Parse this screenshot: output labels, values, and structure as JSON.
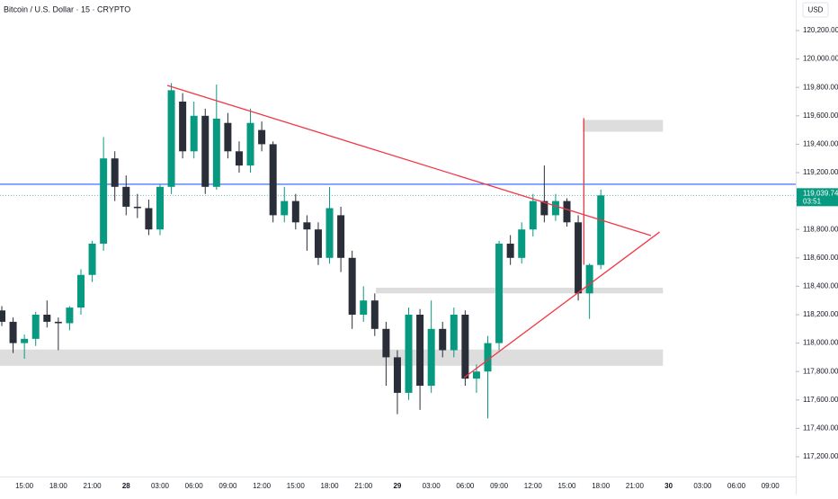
{
  "chart_data": {
    "type": "candlestick",
    "title": "Bitcoin / U.S. Dollar · 15 · CRYPTO",
    "currency_button": "USD",
    "up_color": "#089981",
    "down_color": "#2a2e39",
    "categories": [
      null,
      null,
      "15:00",
      null,
      null,
      "18:00",
      null,
      null,
      "21:00",
      null,
      null,
      "28",
      null,
      null,
      "03:00",
      null,
      null,
      "06:00",
      null,
      null,
      "09:00",
      null,
      null,
      "12:00",
      null,
      null,
      "15:00",
      null,
      null,
      "18:00",
      null,
      null,
      "21:00",
      null,
      null,
      "29",
      null,
      null,
      "03:00",
      null,
      null,
      "06:00",
      null,
      null,
      "09:00",
      null,
      null,
      "12:00",
      null,
      null,
      "15:00",
      null,
      null,
      "18:00",
      null,
      null,
      "21:00",
      null,
      null,
      "30",
      null,
      null,
      "03:00",
      null,
      null,
      "06:00",
      null,
      null,
      "09:00",
      null,
      null
    ],
    "ohlc": [
      [
        118230,
        118260,
        118120,
        118150
      ],
      [
        118150,
        118180,
        117930,
        118000
      ],
      [
        118000,
        118060,
        117890,
        118030
      ],
      [
        118030,
        118220,
        117980,
        118200
      ],
      [
        118200,
        118300,
        118110,
        118150
      ],
      [
        118150,
        118180,
        117950,
        118140
      ],
      [
        118140,
        118260,
        118090,
        118250
      ],
      [
        118250,
        118520,
        118200,
        118480
      ],
      [
        118480,
        118720,
        118430,
        118700
      ],
      [
        118700,
        119450,
        118650,
        119300
      ],
      [
        119300,
        119350,
        119000,
        119100
      ],
      [
        119100,
        119180,
        118900,
        118960
      ],
      [
        118960,
        119050,
        118880,
        118950
      ],
      [
        118950,
        119010,
        118760,
        118800
      ],
      [
        118800,
        119120,
        118760,
        119100
      ],
      [
        119100,
        119830,
        119050,
        119780
      ],
      [
        119700,
        119760,
        119300,
        119350
      ],
      [
        119350,
        119700,
        119300,
        119600
      ],
      [
        119600,
        119650,
        119050,
        119100
      ],
      [
        119100,
        119820,
        119080,
        119580
      ],
      [
        119550,
        119620,
        119300,
        119350
      ],
      [
        119350,
        119420,
        119200,
        119250
      ],
      [
        119250,
        119650,
        119200,
        119550
      ],
      [
        119500,
        119560,
        119350,
        119400
      ],
      [
        119400,
        119420,
        118850,
        118900
      ],
      [
        118900,
        119100,
        118850,
        119000
      ],
      [
        119000,
        119050,
        118800,
        118850
      ],
      [
        118850,
        118900,
        118650,
        118800
      ],
      [
        118800,
        118850,
        118550,
        118600
      ],
      [
        118600,
        119100,
        118560,
        118950
      ],
      [
        118900,
        118960,
        118500,
        118600
      ],
      [
        118600,
        118650,
        118100,
        118200
      ],
      [
        118200,
        118400,
        118150,
        118300
      ],
      [
        118300,
        118350,
        118050,
        118100
      ],
      [
        118100,
        118150,
        117700,
        117900
      ],
      [
        117900,
        117950,
        117500,
        117650
      ],
      [
        117650,
        118250,
        117600,
        118200
      ],
      [
        118200,
        118240,
        117530,
        117700
      ],
      [
        117700,
        118300,
        117650,
        118100
      ],
      [
        118100,
        118150,
        117900,
        117950
      ],
      [
        117950,
        118250,
        117900,
        118200
      ],
      [
        118200,
        118230,
        117700,
        117750
      ],
      [
        117750,
        117850,
        117650,
        117800
      ],
      [
        117800,
        118050,
        117470,
        118000
      ],
      [
        118000,
        118720,
        117950,
        118700
      ],
      [
        118700,
        118760,
        118550,
        118600
      ],
      [
        118600,
        118850,
        118560,
        118800
      ],
      [
        118800,
        119050,
        118750,
        119000
      ],
      [
        119000,
        119250,
        118850,
        118900
      ],
      [
        118900,
        119050,
        118860,
        119000
      ],
      [
        119000,
        119020,
        118820,
        118850
      ],
      [
        118850,
        118900,
        118300,
        118350
      ],
      [
        118350,
        118560,
        118170,
        118550
      ],
      [
        118550,
        119080,
        118520,
        119039.74
      ],
      null,
      null,
      null,
      null,
      null,
      null,
      null,
      null,
      null,
      null,
      null,
      null,
      null,
      null,
      null,
      null
    ],
    "ylim": [
      117060.8,
      120415.2
    ],
    "yticks": [
      {
        "value": 117200,
        "label": "117,200.00"
      },
      {
        "value": 117400,
        "label": "117,400.00"
      },
      {
        "value": 117600,
        "label": "117,600.00"
      },
      {
        "value": 117800,
        "label": "117,800.00"
      },
      {
        "value": 118000,
        "label": "118,000.00"
      },
      {
        "value": 118200,
        "label": "118,200.00"
      },
      {
        "value": 118400,
        "label": "118,400.00"
      },
      {
        "value": 118600,
        "label": "118,600.00"
      },
      {
        "value": 118800,
        "label": "118,800.00"
      },
      {
        "value": 119000,
        "label": "119,000.00"
      },
      {
        "value": 119200,
        "label": "119,200.00"
      },
      {
        "value": 119400,
        "label": "119,400.00"
      },
      {
        "value": 119600,
        "label": "119,600.00"
      },
      {
        "value": 119800,
        "label": "119,800.00"
      },
      {
        "value": 120000,
        "label": "120,000.00"
      },
      {
        "value": 120200,
        "label": "120,200.00"
      }
    ],
    "last_price": {
      "value": 119039.74,
      "label": "119,039.74",
      "countdown": "03:51",
      "color": "#089981"
    },
    "hlines": [
      {
        "value": 119118,
        "color": "#2962ff"
      }
    ],
    "zones": [
      {
        "from": [
          51.4,
          119571
        ],
        "to": [
          58.5,
          119488
        ]
      },
      {
        "from": [
          33.1,
          118390
        ],
        "to": [
          58.5,
          118350
        ]
      },
      {
        "from": [
          -0.2,
          117955
        ],
        "to": [
          58.5,
          117840
        ]
      }
    ],
    "zone_color": "#d9d9d9",
    "trendlines": [
      {
        "from": [
          14.64,
          119814
        ],
        "to": [
          57.44,
          118757
        ]
      },
      {
        "from": [
          40.9,
          117757
        ],
        "to": [
          58.2,
          118782
        ]
      },
      {
        "from": [
          51.5,
          119584
        ],
        "to": [
          51.5,
          118551
        ]
      }
    ],
    "trendline_color": "#f23645"
  }
}
